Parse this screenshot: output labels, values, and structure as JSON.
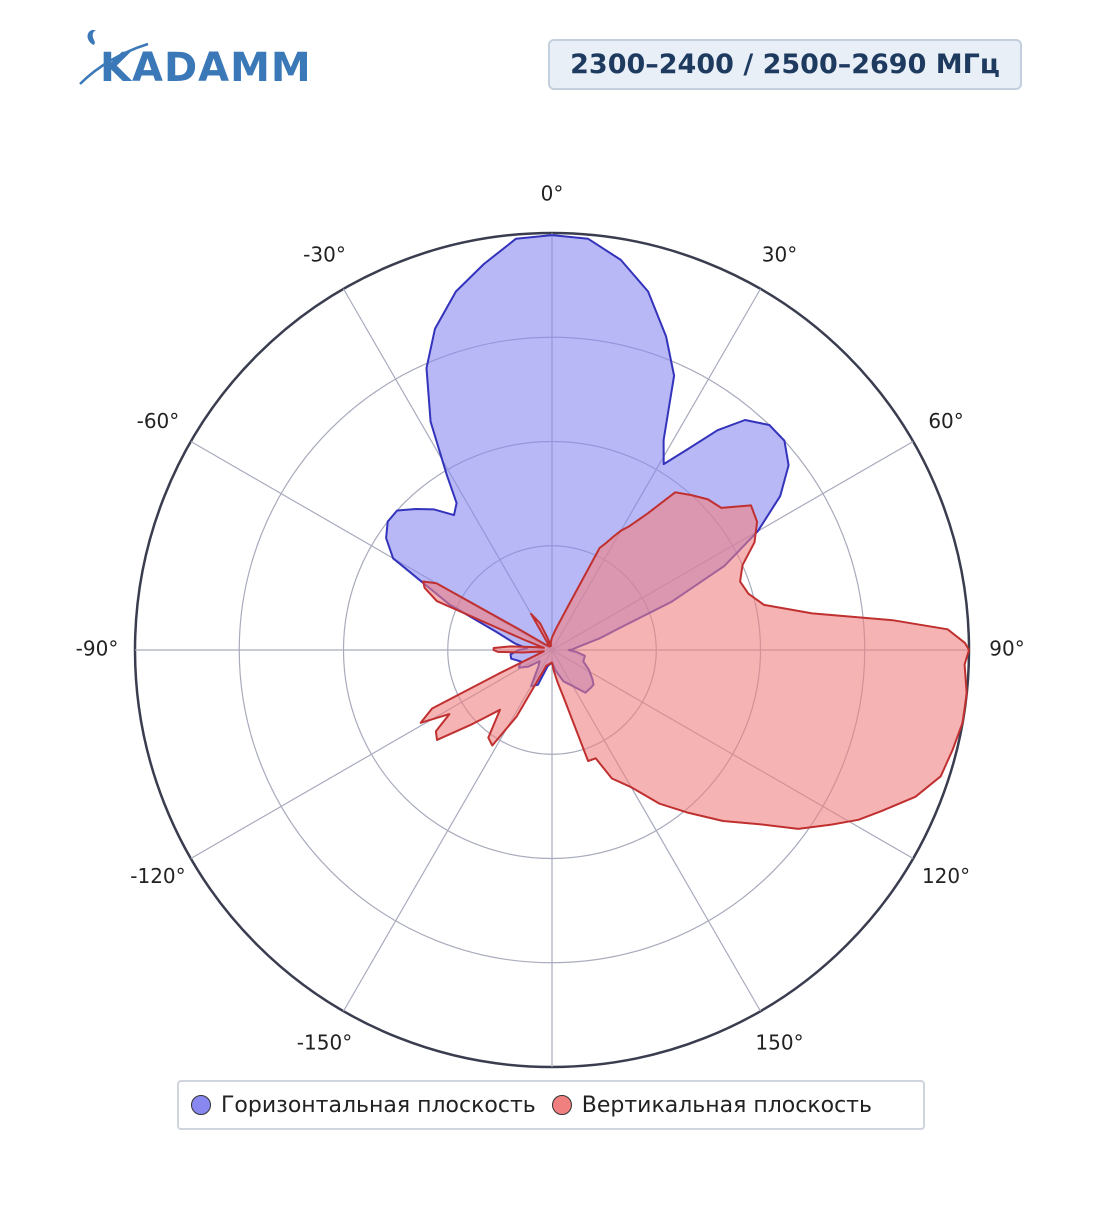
{
  "logo": {
    "text": "KADAMM"
  },
  "badge": {
    "text": "2300–2400 / 2500–2690 МГц"
  },
  "colors": {
    "horizontal_fill": "#8888f0",
    "horizontal_stroke": "#3333bb",
    "vertical_fill": "#f08080",
    "vertical_stroke": "#c03030",
    "grid": "#a8abbc",
    "outer_ring": "#3a3d4f"
  },
  "chart_data": {
    "type": "polar",
    "theta_unit": "deg",
    "theta_direction": "clockwise",
    "theta_zero": "top",
    "angular_ticks": [
      {
        "angle": 0,
        "label": "0°"
      },
      {
        "angle": 30,
        "label": "30°"
      },
      {
        "angle": 60,
        "label": "60°"
      },
      {
        "angle": 90,
        "label": "90°"
      },
      {
        "angle": 120,
        "label": "120°"
      },
      {
        "angle": 150,
        "label": "150°"
      },
      {
        "angle": -30,
        "label": "-30°"
      },
      {
        "angle": -60,
        "label": "-60°"
      },
      {
        "angle": -90,
        "label": "-90°"
      },
      {
        "angle": -120,
        "label": "-120°"
      },
      {
        "angle": -150,
        "label": "-150°"
      }
    ],
    "radial_range": [
      0,
      1
    ],
    "radial_grid": [
      0.25,
      0.5,
      0.75,
      1.0
    ],
    "grid": true,
    "legend_position": "bottom",
    "series": [
      {
        "name": "Горизонтальная плоскость",
        "angles": [
          -180,
          -165,
          -158,
          -150,
          -140,
          -132,
          -125,
          -118,
          -110,
          -102,
          -96,
          -90,
          -86,
          -80,
          -72,
          -66,
          -60,
          -56,
          -52,
          -48,
          -44,
          -40,
          -36,
          -33,
          -31,
          -28,
          -24,
          -20,
          -15,
          -10,
          -5,
          0,
          5,
          10,
          15,
          20,
          24,
          28,
          31,
          34,
          37,
          40,
          44,
          48,
          52,
          56,
          60,
          64,
          68,
          72,
          76,
          80,
          84,
          88,
          90,
          95,
          100,
          110,
          118,
          126,
          130,
          135,
          142,
          150,
          160,
          170,
          180
        ],
        "r": [
          0.03,
          0.04,
          0.09,
          0.1,
          0.05,
          0.04,
          0.07,
          0.09,
          0.08,
          0.1,
          0.1,
          0.08,
          0.06,
          0.09,
          0.14,
          0.27,
          0.44,
          0.48,
          0.5,
          0.5,
          0.47,
          0.44,
          0.4,
          0.42,
          0.49,
          0.62,
          0.74,
          0.82,
          0.89,
          0.94,
          0.99,
          0.995,
          0.99,
          0.95,
          0.89,
          0.8,
          0.72,
          0.57,
          0.52,
          0.58,
          0.66,
          0.72,
          0.75,
          0.75,
          0.72,
          0.66,
          0.57,
          0.46,
          0.31,
          0.17,
          0.12,
          0.08,
          0.06,
          0.05,
          0.04,
          0.06,
          0.08,
          0.08,
          0.1,
          0.12,
          0.13,
          0.13,
          0.13,
          0.1,
          0.08,
          0.05,
          0.03
        ]
      },
      {
        "name": "Вертикальная плоскость",
        "angles": [
          -180,
          -160,
          -152,
          -148,
          -144,
          -139,
          -133,
          -128,
          -125,
          -122,
          -119,
          -116,
          -114,
          -108,
          -100,
          -95,
          -92,
          -90,
          -88,
          -85,
          -80,
          -75,
          -70,
          -67,
          -64,
          -62,
          -60,
          -58,
          -50,
          -35,
          -30,
          -24,
          -20,
          -15,
          -8,
          0,
          10,
          20,
          25,
          27,
          28.5,
          30,
          32,
          35,
          38,
          42,
          46,
          50,
          54,
          58,
          62,
          66,
          70,
          74,
          78,
          82,
          85,
          87,
          89,
          90,
          92,
          96,
          100,
          104,
          108,
          112,
          116,
          119,
          122,
          126,
          130,
          135,
          140,
          145,
          150,
          155,
          158,
          162,
          166,
          170,
          175,
          180
        ],
        "r": [
          0.03,
          0.04,
          0.18,
          0.27,
          0.26,
          0.19,
          0.26,
          0.35,
          0.34,
          0.29,
          0.36,
          0.32,
          0.14,
          0.04,
          0.02,
          0.07,
          0.13,
          0.14,
          0.14,
          0.1,
          0.04,
          0.02,
          0.07,
          0.3,
          0.34,
          0.35,
          0.32,
          0.1,
          0.02,
          0.01,
          0.1,
          0.07,
          0.03,
          0.01,
          0.02,
          0.03,
          0.05,
          0.11,
          0.27,
          0.29,
          0.31,
          0.33,
          0.35,
          0.4,
          0.48,
          0.5,
          0.52,
          0.53,
          0.59,
          0.58,
          0.55,
          0.5,
          0.48,
          0.49,
          0.52,
          0.63,
          0.82,
          0.95,
          0.99,
          1.0,
          0.99,
          1.0,
          1.0,
          0.99,
          0.98,
          0.94,
          0.88,
          0.84,
          0.79,
          0.73,
          0.65,
          0.58,
          0.51,
          0.45,
          0.38,
          0.34,
          0.28,
          0.28,
          0.12,
          0.08,
          0.05,
          0.03
        ]
      }
    ]
  },
  "legend": [
    {
      "label": "Горизонтальная плоскость",
      "color": "#8888f0"
    },
    {
      "label": "Вертикальная плоскость",
      "color": "#f08080"
    }
  ]
}
